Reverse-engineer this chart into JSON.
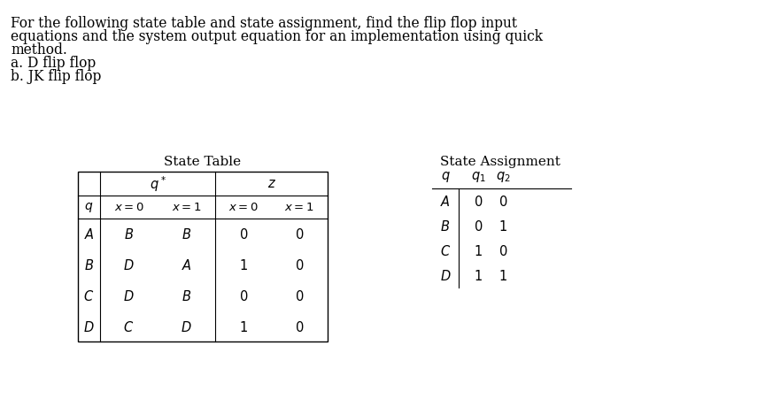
{
  "title_line1": "For the following state table and state assignment, find the flip flop input",
  "title_line2": "equations and the system output equation for an implementation using quick",
  "title_line3": "method.",
  "title_line4": "a. D flip flop",
  "title_line5": "b. JK flip flop",
  "state_table_title": "State Table",
  "state_assignment_title": "State Assignment",
  "bg_color": "#ffffff",
  "font_family": "DejaVu Serif",
  "state_table_rows": [
    [
      "A",
      "B",
      "B",
      "0",
      "0"
    ],
    [
      "B",
      "D",
      "A",
      "1",
      "0"
    ],
    [
      "C",
      "D",
      "B",
      "0",
      "0"
    ],
    [
      "D",
      "C",
      "D",
      "1",
      "0"
    ]
  ],
  "state_assignment_rows": [
    [
      "A",
      "0",
      "0"
    ],
    [
      "B",
      "0",
      "1"
    ],
    [
      "C",
      "1",
      "0"
    ],
    [
      "D",
      "1",
      "1"
    ]
  ]
}
